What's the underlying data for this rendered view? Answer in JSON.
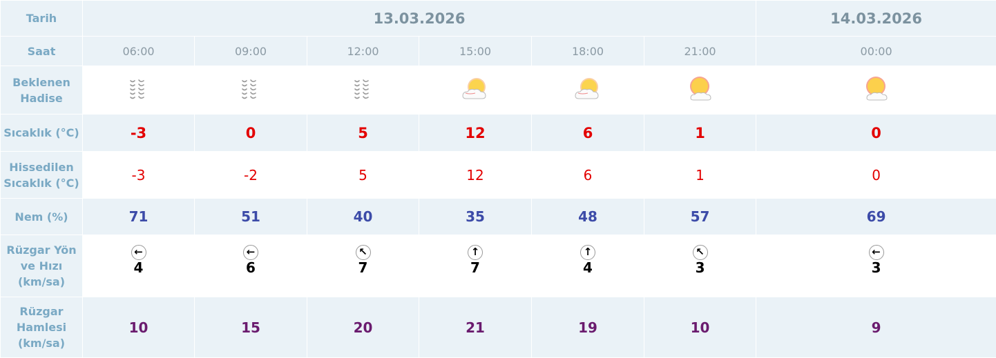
{
  "labels": {
    "date": "Tarih",
    "time": "Saat",
    "event": [
      "Beklenen",
      "Hadise"
    ],
    "temp": "Sıcaklık (°C)",
    "feels": [
      "Hissedilen",
      "Sıcaklık (°C)"
    ],
    "humidity": "Nem (%)",
    "wind": [
      "Rüzgar Yön",
      "ve Hızı",
      "(km/sa)"
    ],
    "gust": [
      "Rüzgar",
      "Hamlesi",
      "(km/sa)"
    ]
  },
  "dates": [
    "13.03.2026",
    "14.03.2026"
  ],
  "columns": [
    {
      "time": "06:00",
      "icon": "snow-icon",
      "temp": "-3",
      "feels": "-3",
      "humidity": "71",
      "wind_dir": "west",
      "wind_arrow": "←",
      "wind_speed": "4",
      "gust": "10"
    },
    {
      "time": "09:00",
      "icon": "snow-icon",
      "temp": "0",
      "feels": "-2",
      "humidity": "51",
      "wind_dir": "west",
      "wind_arrow": "←",
      "wind_speed": "6",
      "gust": "15"
    },
    {
      "time": "12:00",
      "icon": "snow-icon",
      "temp": "5",
      "feels": "5",
      "humidity": "40",
      "wind_dir": "northwest",
      "wind_arrow": "↖",
      "wind_speed": "7",
      "gust": "20"
    },
    {
      "time": "15:00",
      "icon": "partly-cloudy-icon",
      "temp": "12",
      "feels": "12",
      "humidity": "35",
      "wind_dir": "north",
      "wind_arrow": "↑",
      "wind_speed": "7",
      "gust": "21"
    },
    {
      "time": "18:00",
      "icon": "partly-cloudy-icon",
      "temp": "6",
      "feels": "6",
      "humidity": "48",
      "wind_dir": "north",
      "wind_arrow": "↑",
      "wind_speed": "4",
      "gust": "19"
    },
    {
      "time": "21:00",
      "icon": "mostly-sunny-icon",
      "temp": "1",
      "feels": "1",
      "humidity": "57",
      "wind_dir": "northwest",
      "wind_arrow": "↖",
      "wind_speed": "3",
      "gust": "10"
    },
    {
      "time": "00:00",
      "icon": "mostly-sunny-icon",
      "temp": "0",
      "feels": "0",
      "humidity": "69",
      "wind_dir": "west",
      "wind_arrow": "←",
      "wind_speed": "3",
      "gust": "9"
    }
  ]
}
